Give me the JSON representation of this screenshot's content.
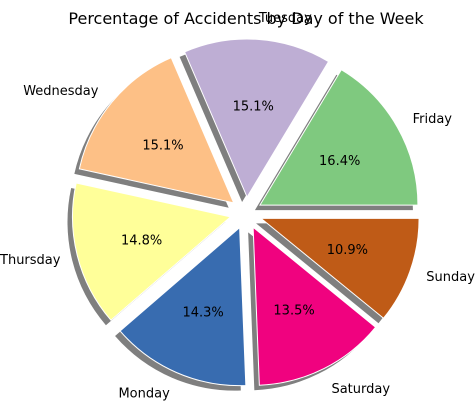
{
  "chart_data": {
    "type": "pie",
    "title": "Percentage of Accidents by Day of the Week",
    "start_category": "Friday",
    "direction": "counterclockwise",
    "shadow": true,
    "exploded": true,
    "categories": [
      "Friday",
      "Tuesday",
      "Wednesday",
      "Thursday",
      "Monday",
      "Saturday",
      "Sunday"
    ],
    "values": [
      16.4,
      15.1,
      15.1,
      14.8,
      14.3,
      13.5,
      10.9
    ],
    "labels": [
      "16.4%",
      "15.1%",
      "15.1%",
      "14.8%",
      "14.3%",
      "13.5%",
      "10.9%"
    ],
    "colors": [
      "#7fc97f",
      "#beaed4",
      "#fdc086",
      "#ffff99",
      "#386cb0",
      "#f0027f",
      "#bf5b17"
    ]
  }
}
